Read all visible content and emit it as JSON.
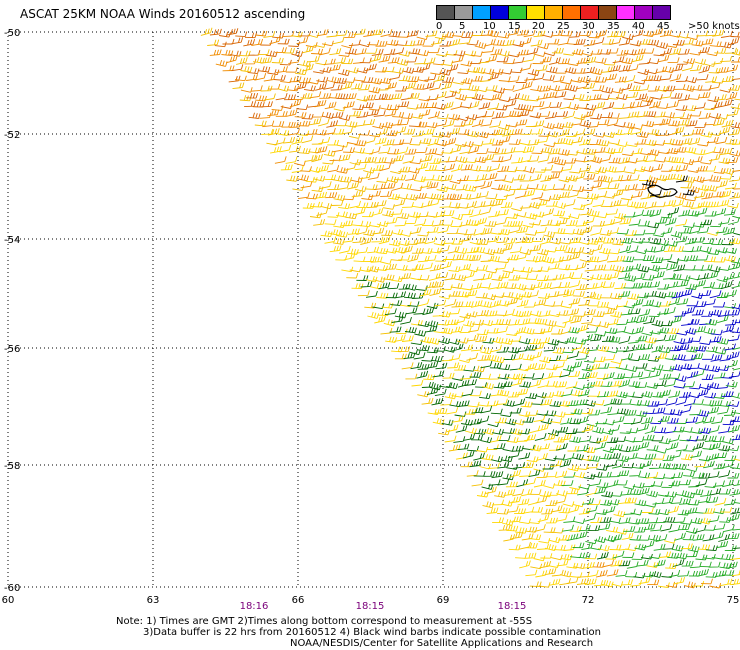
{
  "title": "ASCAT 25KM NOAA Winds 20160512 ascending",
  "legend": {
    "labels": [
      "0",
      "5",
      "10",
      "15",
      "20",
      "25",
      "30",
      "35",
      "40",
      "45",
      ">50 knots"
    ],
    "colors": [
      "#555555",
      "#9a9a9a",
      "#00a0ff",
      "#0000dd",
      "#33cc33",
      "#ffe000",
      "#ffb000",
      "#ff7000",
      "#ee2020",
      "#8b4513",
      "#ff30ff",
      "#a000c0",
      "#6600aa"
    ]
  },
  "axes": {
    "lat_labels": [
      "-50",
      "-52",
      "-54",
      "-56",
      "-58",
      "-60"
    ],
    "lon_labels": [
      "60",
      "63",
      "66",
      "69",
      "72",
      "75"
    ],
    "times": [
      "18:16",
      "18:15",
      "18:15"
    ]
  },
  "notes": [
    "Note: 1) Times are GMT 2)Times along bottom correspond to measurement at -55S",
    "3)Data buffer is 22 hrs from 20160512 4) Black wind barbs indicate possible contamination",
    "NOAA/NESDIS/Center for Satellite Applications and Research"
  ],
  "barb_colors": {
    "yellow": "#ffd700",
    "gold": "#f5c000",
    "orange": "#f08c00",
    "darkorange": "#d86400",
    "green": "#22aa22",
    "darkgreen": "#006600",
    "blue": "#0000cc",
    "black": "#000000"
  }
}
